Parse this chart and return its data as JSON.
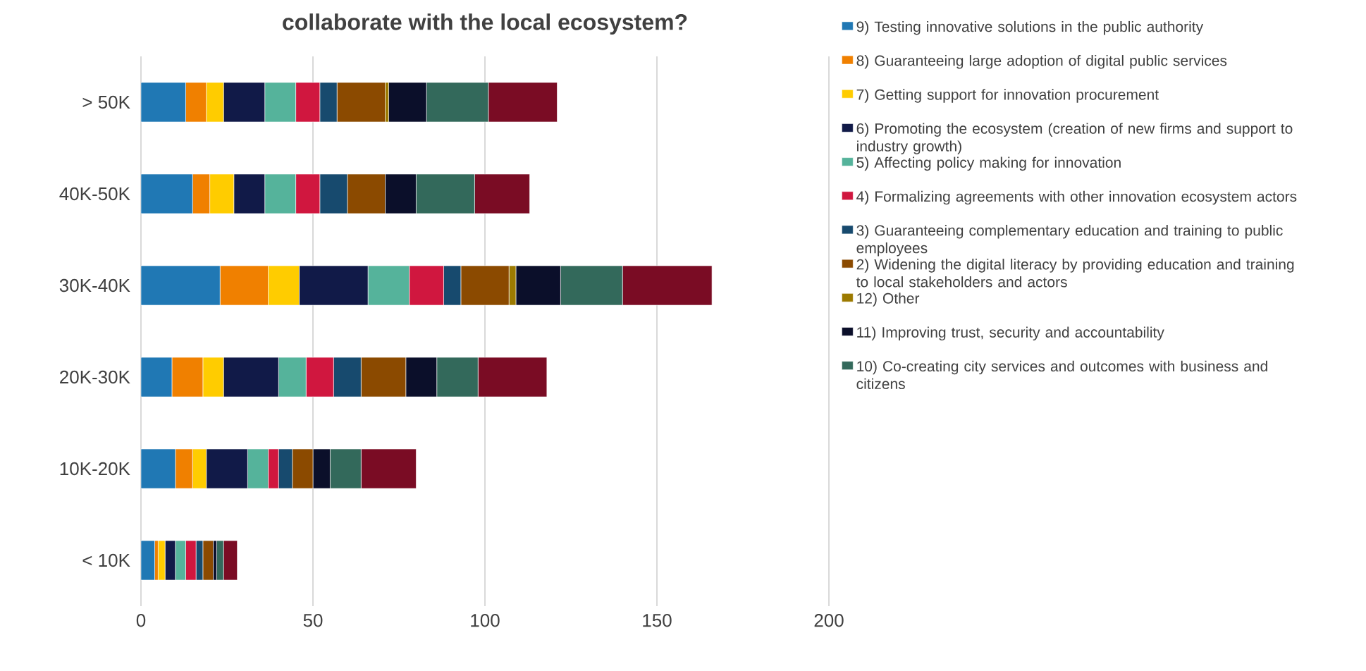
{
  "chart_data": {
    "type": "bar",
    "orientation": "horizontal",
    "stacked": true,
    "title": "collaborate with the local ecosystem?",
    "categories": [
      "> 50K",
      "40K-50K",
      "30K-40K",
      "20K-30K",
      "10K-20K",
      "< 10K"
    ],
    "series": [
      {
        "name": "9) Testing innovative solutions in the public authority",
        "color": "#2078b4",
        "values": [
          13,
          15,
          23,
          9,
          10,
          4
        ]
      },
      {
        "name": "8) Guaranteeing large adoption of digital public services",
        "color": "#f08000",
        "values": [
          6,
          5,
          14,
          9,
          5,
          1
        ]
      },
      {
        "name": "7) Getting support for innovation procurement",
        "color": "#ffcc00",
        "values": [
          5,
          7,
          9,
          6,
          4,
          2
        ]
      },
      {
        "name": "6) Promoting the ecosystem (creation of new firms and support to industry growth)",
        "color": "#111a48",
        "values": [
          12,
          9,
          20,
          16,
          12,
          3
        ]
      },
      {
        "name": "5) Affecting policy making for innovation",
        "color": "#55b39b",
        "values": [
          9,
          9,
          12,
          8,
          6,
          3
        ]
      },
      {
        "name": "4) Formalizing agreements with other innovation ecosystem actors",
        "color": "#d0173f",
        "values": [
          7,
          7,
          10,
          8,
          3,
          3
        ]
      },
      {
        "name": "3) Guaranteeing complementary education and training to public employees",
        "color": "#174a6e",
        "values": [
          5,
          8,
          5,
          8,
          4,
          2
        ]
      },
      {
        "name": "2) Widening the digital literacy by providing education and training to local stakeholders and actors",
        "color": "#8b4a00",
        "values": [
          14,
          11,
          14,
          13,
          6,
          3
        ]
      },
      {
        "name": "12) Other",
        "color": "#9c7a00",
        "values": [
          1,
          0,
          2,
          0,
          0,
          0
        ]
      },
      {
        "name": "11) Improving trust, security and accountability",
        "color": "#0b0f2a",
        "values": [
          11,
          9,
          13,
          9,
          5,
          1
        ]
      },
      {
        "name": "10) Co-creating city services and outcomes with business and citizens",
        "color": "#33695b",
        "values": [
          18,
          17,
          18,
          12,
          9,
          2
        ]
      },
      {
        "color": "#7a0c24",
        "values": [
          20,
          16,
          26,
          20,
          16,
          4
        ]
      }
    ],
    "xlim": [
      0,
      200
    ],
    "xticks": [
      0,
      50,
      100,
      150,
      200
    ],
    "grid": "x",
    "legend": "right"
  }
}
